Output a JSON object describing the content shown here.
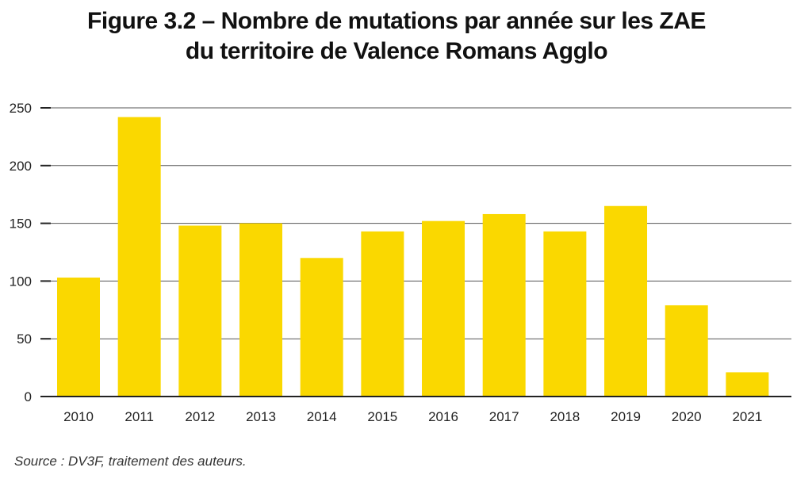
{
  "title_line1": "Figure 3.2 – Nombre de mutations par année sur les ZAE",
  "title_line2": "du territoire de Valence Romans Agglo",
  "source": "Source : DV3F, traitement des auteurs.",
  "colors": {
    "bar": "#fad800",
    "grid": "#555555",
    "axis": "#222222"
  },
  "chart_data": {
    "type": "bar",
    "title": "Figure 3.2 – Nombre de mutations par année sur les ZAE du territoire de Valence Romans Agglo",
    "xlabel": "",
    "ylabel": "",
    "categories": [
      "2010",
      "2011",
      "2012",
      "2013",
      "2014",
      "2015",
      "2016",
      "2017",
      "2018",
      "2019",
      "2020",
      "2021"
    ],
    "values": [
      103,
      242,
      148,
      150,
      120,
      143,
      152,
      158,
      143,
      165,
      79,
      21
    ],
    "ylim": [
      0,
      250
    ],
    "yticks": [
      0,
      50,
      100,
      150,
      200,
      250
    ],
    "grid": true,
    "legend": "none"
  }
}
